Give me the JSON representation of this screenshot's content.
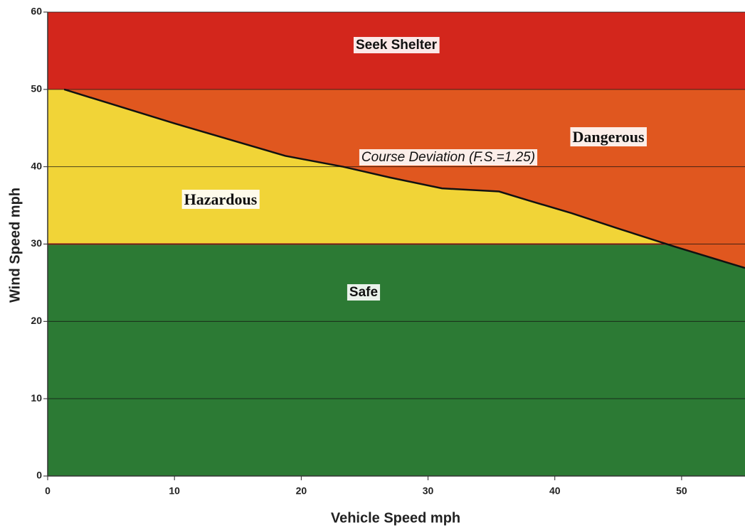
{
  "chart_data": {
    "type": "area",
    "xlabel": "Vehicle Speed mph",
    "ylabel": "Wind Speed mph",
    "xlim": [
      0,
      55
    ],
    "ylim": [
      0,
      60
    ],
    "xticks": [
      0,
      10,
      20,
      30,
      40,
      50
    ],
    "yticks": [
      0,
      10,
      20,
      30,
      40,
      50,
      60
    ],
    "grid": true,
    "zones": [
      {
        "name": "Seek Shelter",
        "from": 50,
        "to": 60,
        "color": "#d3261c"
      },
      {
        "name": "Dangerous",
        "color": "#e0571f"
      },
      {
        "name": "Hazardous",
        "color": "#f1d437"
      },
      {
        "name": "Safe",
        "from": 0,
        "to": 30,
        "color": "#2c7a34"
      }
    ],
    "series": [
      {
        "name": "Course Deviation (F.S.=1.25)",
        "color": "#111111",
        "x": [
          1.3,
          10,
          18.75,
          23.3,
          27,
          31.1,
          35.6,
          38,
          41.3,
          45,
          49.4,
          55
        ],
        "values": [
          50,
          45.6,
          41.4,
          40,
          38.6,
          37.2,
          36.8,
          35.6,
          34,
          32,
          29.7,
          26.9
        ]
      }
    ]
  }
}
